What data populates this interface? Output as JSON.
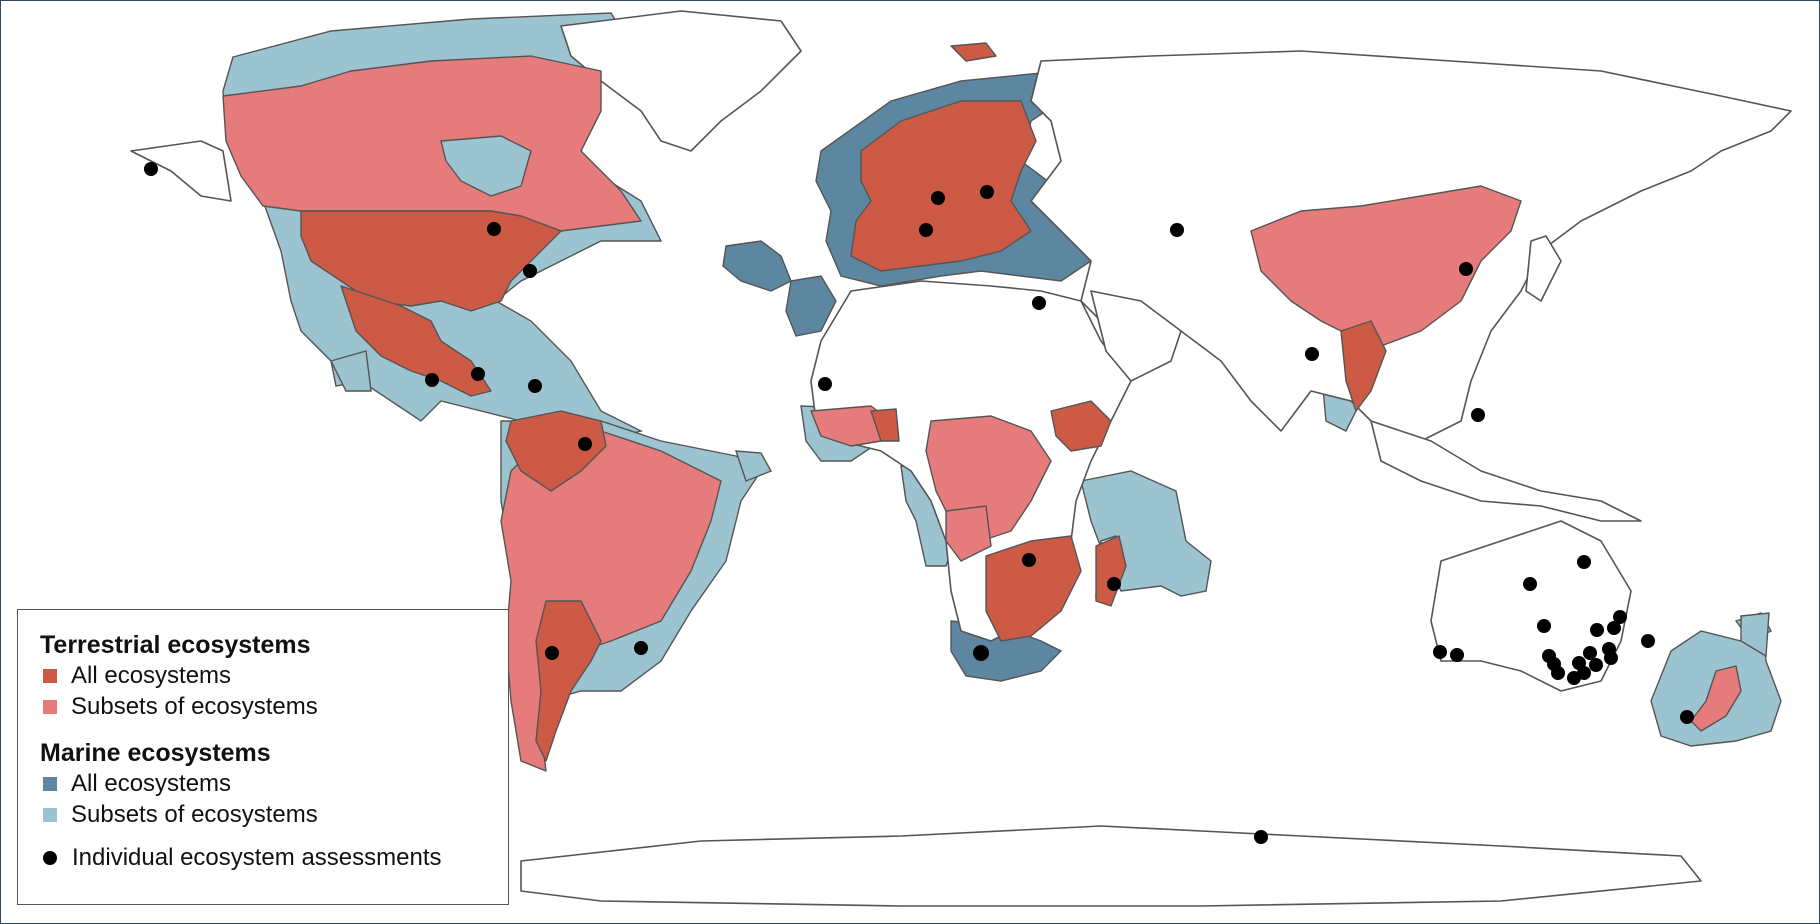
{
  "legend": {
    "terrestrial_heading": "Terrestrial ecosystems",
    "terrestrial_all": "All ecosystems",
    "terrestrial_subsets": "Subsets of ecosystems",
    "marine_heading": "Marine ecosystems",
    "marine_all": "All ecosystems",
    "marine_subsets": "Subsets of ecosystems",
    "assessments": "Individual ecosystem assessments"
  },
  "colors": {
    "terrestrial_all": "#cd5a45",
    "terrestrial_subsets": "#e57b7b",
    "marine_all": "#5d87a1",
    "marine_subsets": "#9cc3d0",
    "assessment_dot": "#000000"
  }
}
